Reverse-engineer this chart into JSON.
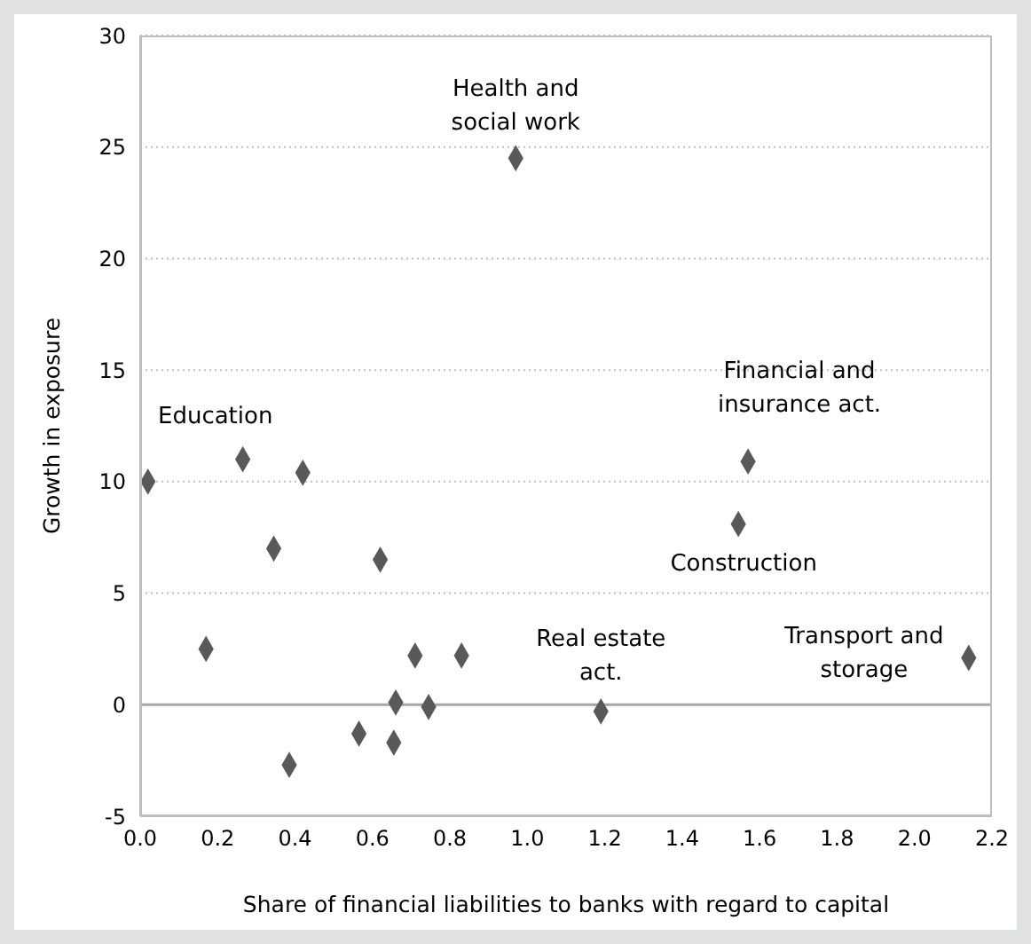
{
  "chart_data": {
    "type": "scatter",
    "xlabel": "Share of financial liabilities to banks with regard to capital",
    "ylabel": "Growth in exposure",
    "x": [
      0.02,
      0.265,
      0.42,
      0.345,
      0.62,
      0.17,
      0.71,
      0.83,
      0.66,
      0.745,
      0.565,
      0.655,
      0.385,
      0.97,
      1.57,
      1.545,
      2.14,
      1.19
    ],
    "values": [
      10,
      11,
      10.4,
      7,
      6.5,
      2.5,
      2.2,
      2.2,
      0.1,
      -0.1,
      -1.3,
      -1.7,
      -2.7,
      24.5,
      10.9,
      8.1,
      2.1,
      -0.3
    ],
    "color": "#595959",
    "marker": "diamond",
    "xlim": [
      0,
      2.2
    ],
    "xticks": [
      {
        "value": 0,
        "label": "0.0"
      },
      {
        "value": 0.2,
        "label": "0.2"
      },
      {
        "value": 0.4,
        "label": "0.4"
      },
      {
        "value": 0.6,
        "label": "0.6"
      },
      {
        "value": 0.8,
        "label": "0.8"
      },
      {
        "value": 1,
        "label": "1.0"
      },
      {
        "value": 1.2,
        "label": "1.2"
      },
      {
        "value": 1.4,
        "label": "1.4"
      },
      {
        "value": 1.6,
        "label": "1.6"
      },
      {
        "value": 1.8,
        "label": "1.8"
      },
      {
        "value": 2,
        "label": "2.0"
      },
      {
        "value": 2.2,
        "label": "2.2"
      }
    ],
    "ylim": [
      -5,
      30
    ],
    "yticks": [
      -5,
      0,
      5,
      10,
      15,
      20,
      25,
      30
    ],
    "grid": "y",
    "ref_lines": [
      {
        "axis": "y",
        "value": 0,
        "color": "#a6a6a6",
        "line_style": "solid"
      }
    ],
    "annotations": [
      {
        "text": "Education",
        "x": 0.02,
        "y": 10
      },
      {
        "text": "Health and\nsocial work",
        "x": 0.97,
        "y": 24.5
      },
      {
        "text": "Financial and\ninsurance act.",
        "x": 1.57,
        "y": 10.9
      },
      {
        "text": "Construction",
        "x": 1.545,
        "y": 8.1
      },
      {
        "text": "Real estate\nact.",
        "x": 1.19,
        "y": -0.3
      },
      {
        "text": "Transport and\nstorage",
        "x": 2.14,
        "y": 2.1
      }
    ]
  }
}
